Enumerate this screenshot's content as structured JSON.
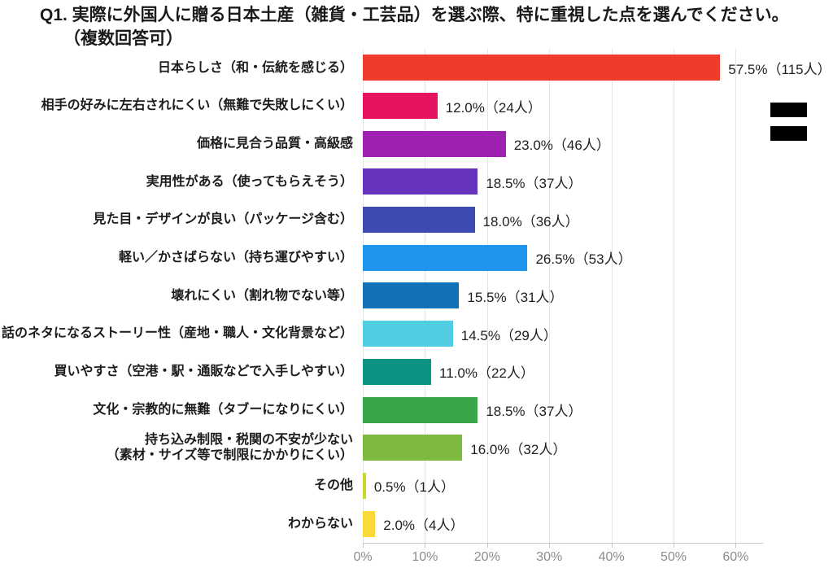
{
  "title": {
    "line1": "Q1. 実際に外国人に贈る日本土産（雑貨・工芸品）を選ぶ際、特に重視した点を選んでください。",
    "line2": "（複数回答可）"
  },
  "chart_data": {
    "type": "bar",
    "orientation": "horizontal",
    "title": "Q1. 実際に外国人に贈る日本土産（雑貨・工芸品）を選ぶ際、特に重視した点を選んでください。（複数回答可）",
    "categories": [
      "日本らしさ（和・伝統を感じる）",
      "相手の好みに左右されにくい（無難で失敗しにくい）",
      "価格に見合う品質・高級感",
      "実用性がある（使ってもらえそう）",
      "見た目・デザインが良い（パッケージ含む）",
      "軽い／かさばらない（持ち運びやすい）",
      "壊れにくい（割れ物でない等）",
      "話のネタになるストーリー性（産地・職人・文化背景など）",
      "買いやすさ（空港・駅・通販などで入手しやすい）",
      "文化・宗教的に無難（タブーになりにくい）",
      "持ち込み制限・税関の不安が少ない（素材・サイズ等で制限にかかりにくい）",
      "その他",
      "わからない"
    ],
    "categories_wrapped": [
      [
        "日本らしさ（和・伝統を感じる）"
      ],
      [
        "相手の好みに左右されにくい（無難で失敗しにくい）"
      ],
      [
        "価格に見合う品質・高級感"
      ],
      [
        "実用性がある（使ってもらえそう）"
      ],
      [
        "見た目・デザインが良い（パッケージ含む）"
      ],
      [
        "軽い／かさばらない（持ち運びやすい）"
      ],
      [
        "壊れにくい（割れ物でない等）"
      ],
      [
        "話のネタになるストーリー性（産地・職人・文化背景など）"
      ],
      [
        "買いやすさ（空港・駅・通販などで入手しやすい）"
      ],
      [
        "文化・宗教的に無難（タブーになりにくい）"
      ],
      [
        "持ち込み制限・税関の不安が少ない",
        "（素材・サイズ等で制限にかかりにくい）"
      ],
      [
        "その他"
      ],
      [
        "わからない"
      ]
    ],
    "values": [
      57.5,
      12.0,
      23.0,
      18.5,
      18.0,
      26.5,
      15.5,
      14.5,
      11.0,
      18.5,
      16.0,
      0.5,
      2.0
    ],
    "counts": [
      115,
      24,
      46,
      37,
      36,
      53,
      31,
      29,
      22,
      37,
      32,
      1,
      4
    ],
    "data_labels": [
      "57.5%（115人）",
      "12.0%（24人）",
      "23.0%（46人）",
      "18.5%（37人）",
      "18.0%（36人）",
      "26.5%（53人）",
      "15.5%（31人）",
      "14.5%（29人）",
      "11.0%（22人）",
      "18.5%（37人）",
      "16.0%（32人）",
      "0.5%（1人）",
      "2.0%（4人）"
    ],
    "bar_colors": [
      "#ee3b2c",
      "#e5135f",
      "#9e21b1",
      "#6633bd",
      "#3c4ab2",
      "#2095ec",
      "#1171b7",
      "#50cde0",
      "#0d9384",
      "#3aa54a",
      "#7eba3f",
      "#cdd62c",
      "#f8da39"
    ],
    "xlabel": "",
    "ylabel": "",
    "xlim": [
      0,
      64.5
    ],
    "x_ticks": [
      0,
      10,
      20,
      30,
      40,
      50,
      60
    ],
    "x_tick_labels": [
      "0%",
      "10%",
      "20%",
      "30%",
      "40%",
      "50%",
      "60%"
    ],
    "grid": true,
    "legend": false
  },
  "colors": {
    "grid": "#e4e4e4",
    "axis": "#c9c9c9",
    "tick_label": "#8c8c8c",
    "text": "#1c1c1c",
    "equals_mark": "#000000"
  },
  "decoration": {
    "equals_mark": "black double-bar equals symbol"
  }
}
